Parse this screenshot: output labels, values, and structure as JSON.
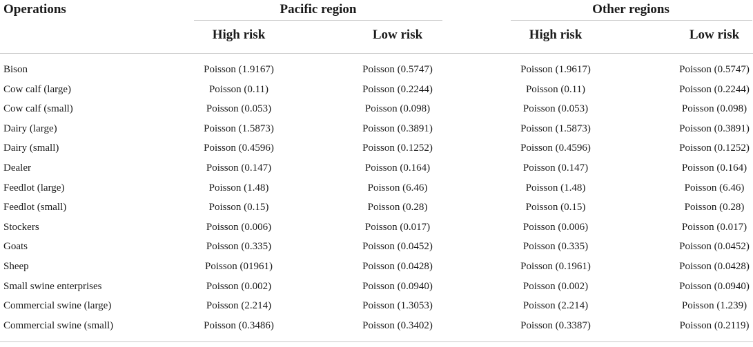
{
  "table": {
    "header": {
      "operations": "Operations",
      "groups": [
        "Pacific region",
        "Other regions"
      ],
      "subcolumns": [
        "High risk",
        "Low risk",
        "High risk",
        "Low risk"
      ]
    },
    "rows": [
      {
        "op": "Bison",
        "vals": [
          "Poisson (1.9167)",
          "Poisson (0.5747)",
          "Poisson (1.9617)",
          "Poisson (0.5747)"
        ]
      },
      {
        "op": "Cow calf (large)",
        "vals": [
          "Poisson (0.11)",
          "Poisson (0.2244)",
          "Poisson (0.11)",
          "Poisson (0.2244)"
        ]
      },
      {
        "op": "Cow calf (small)",
        "vals": [
          "Poisson (0.053)",
          "Poisson (0.098)",
          "Poisson (0.053)",
          "Poisson (0.098)"
        ]
      },
      {
        "op": "Dairy (large)",
        "vals": [
          "Poisson (1.5873)",
          "Poisson (0.3891)",
          "Poisson (1.5873)",
          "Poisson (0.3891)"
        ]
      },
      {
        "op": "Dairy (small)",
        "vals": [
          "Poisson (0.4596)",
          "Poisson (0.1252)",
          "Poisson (0.4596)",
          "Poisson (0.1252)"
        ]
      },
      {
        "op": "Dealer",
        "vals": [
          "Poisson (0.147)",
          "Poisson (0.164)",
          "Poisson (0.147)",
          "Poisson (0.164)"
        ]
      },
      {
        "op": "Feedlot (large)",
        "vals": [
          "Poisson (1.48)",
          "Poisson (6.46)",
          "Poisson (1.48)",
          "Poisson (6.46)"
        ]
      },
      {
        "op": "Feedlot (small)",
        "vals": [
          "Poisson (0.15)",
          "Poisson (0.28)",
          "Poisson (0.15)",
          "Poisson (0.28)"
        ]
      },
      {
        "op": "Stockers",
        "vals": [
          "Poisson (0.006)",
          "Poisson (0.017)",
          "Poisson (0.006)",
          "Poisson (0.017)"
        ]
      },
      {
        "op": "Goats",
        "vals": [
          "Poisson (0.335)",
          "Poisson (0.0452)",
          "Poisson (0.335)",
          "Poisson (0.0452)"
        ]
      },
      {
        "op": "Sheep",
        "vals": [
          "Poisson (01961)",
          "Poisson (0.0428)",
          "Poisson (0.1961)",
          "Poisson (0.0428)"
        ]
      },
      {
        "op": "Small swine enterprises",
        "vals": [
          "Poisson (0.002)",
          "Poisson (0.0940)",
          "Poisson (0.002)",
          "Poisson (0.0940)"
        ]
      },
      {
        "op": "Commercial swine (large)",
        "vals": [
          "Poisson (2.214)",
          "Poisson (1.3053)",
          "Poisson (2.214)",
          "Poisson (1.239)"
        ]
      },
      {
        "op": "Commercial swine (small)",
        "vals": [
          "Poisson (0.3486)",
          "Poisson (0.3402)",
          "Poisson (0.3387)",
          "Poisson (0.2119)"
        ]
      }
    ]
  }
}
